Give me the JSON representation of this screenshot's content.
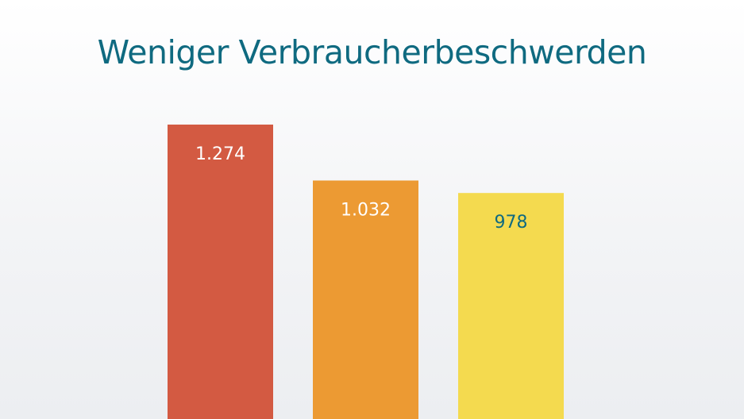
{
  "chart_data": {
    "type": "bar",
    "title": "Weniger Verbraucherbeschwerden",
    "values": [
      1274,
      1032,
      978
    ],
    "value_labels": [
      "1.274",
      "1.032",
      "978"
    ],
    "colors": [
      "#d35a42",
      "#ec9a33",
      "#f4da4f"
    ],
    "label_colors": [
      "#ffffff",
      "#ffffff",
      "#0f6a80"
    ],
    "title_color": "#0f6a80",
    "grid": false,
    "legend": "none"
  }
}
